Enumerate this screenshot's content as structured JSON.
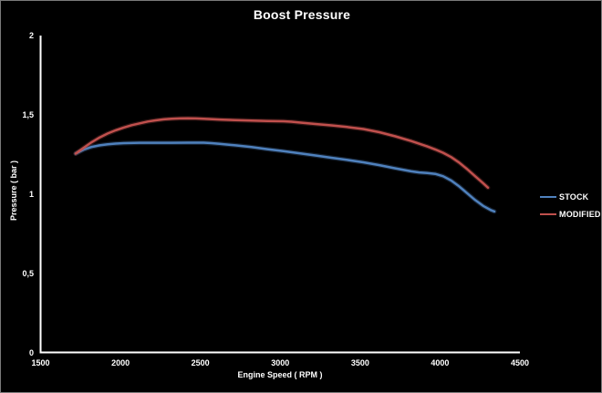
{
  "chart_data": {
    "type": "line",
    "title": "Boost Pressure",
    "xlabel": "Engine Speed ( RPM )",
    "ylabel": "Pressure ( bar )",
    "xlim": [
      1500,
      4500
    ],
    "ylim": [
      0,
      2
    ],
    "grid": false,
    "legend_position": "right-middle",
    "background_color": "#000000",
    "text_color": "#ffffff",
    "axis_color": "#ffffff",
    "border_color": "#7a7a7a",
    "x_ticks": [
      {
        "v": 1500,
        "label": "1500"
      },
      {
        "v": 2000,
        "label": "2000"
      },
      {
        "v": 2500,
        "label": "2500"
      },
      {
        "v": 3000,
        "label": "3000"
      },
      {
        "v": 3500,
        "label": "3500"
      },
      {
        "v": 4000,
        "label": "4000"
      },
      {
        "v": 4500,
        "label": "4500"
      }
    ],
    "y_ticks": [
      {
        "v": 0,
        "label": "0"
      },
      {
        "v": 0.5,
        "label": "0,5"
      },
      {
        "v": 1,
        "label": "1"
      },
      {
        "v": 1.5,
        "label": "1,5"
      },
      {
        "v": 2,
        "label": "2"
      }
    ],
    "series": [
      {
        "name": "STOCK",
        "color": "#4f81bd",
        "points": [
          [
            1720,
            1.255
          ],
          [
            1770,
            1.28
          ],
          [
            1820,
            1.297
          ],
          [
            1870,
            1.307
          ],
          [
            1920,
            1.314
          ],
          [
            1970,
            1.318
          ],
          [
            2020,
            1.321
          ],
          [
            2120,
            1.323
          ],
          [
            2220,
            1.323
          ],
          [
            2320,
            1.323
          ],
          [
            2420,
            1.324
          ],
          [
            2520,
            1.324
          ],
          [
            2570,
            1.321
          ],
          [
            2620,
            1.317
          ],
          [
            2720,
            1.307
          ],
          [
            2820,
            1.296
          ],
          [
            2920,
            1.283
          ],
          [
            3020,
            1.27
          ],
          [
            3120,
            1.257
          ],
          [
            3220,
            1.243
          ],
          [
            3320,
            1.229
          ],
          [
            3420,
            1.215
          ],
          [
            3520,
            1.2
          ],
          [
            3620,
            1.182
          ],
          [
            3720,
            1.162
          ],
          [
            3820,
            1.143
          ],
          [
            3870,
            1.136
          ],
          [
            3920,
            1.132
          ],
          [
            3970,
            1.127
          ],
          [
            4020,
            1.112
          ],
          [
            4070,
            1.085
          ],
          [
            4120,
            1.048
          ],
          [
            4170,
            1.005
          ],
          [
            4220,
            0.962
          ],
          [
            4270,
            0.925
          ],
          [
            4320,
            0.897
          ],
          [
            4340,
            0.89
          ]
        ]
      },
      {
        "name": "MODIFIED",
        "color": "#c0504d",
        "points": [
          [
            1720,
            1.255
          ],
          [
            1770,
            1.292
          ],
          [
            1820,
            1.327
          ],
          [
            1870,
            1.357
          ],
          [
            1920,
            1.382
          ],
          [
            1970,
            1.402
          ],
          [
            2020,
            1.419
          ],
          [
            2070,
            1.434
          ],
          [
            2120,
            1.446
          ],
          [
            2170,
            1.457
          ],
          [
            2220,
            1.465
          ],
          [
            2270,
            1.471
          ],
          [
            2320,
            1.475
          ],
          [
            2370,
            1.477
          ],
          [
            2420,
            1.478
          ],
          [
            2470,
            1.477
          ],
          [
            2520,
            1.475
          ],
          [
            2620,
            1.47
          ],
          [
            2720,
            1.466
          ],
          [
            2820,
            1.463
          ],
          [
            2920,
            1.461
          ],
          [
            3020,
            1.459
          ],
          [
            3070,
            1.456
          ],
          [
            3120,
            1.451
          ],
          [
            3220,
            1.442
          ],
          [
            3320,
            1.433
          ],
          [
            3420,
            1.423
          ],
          [
            3520,
            1.41
          ],
          [
            3620,
            1.39
          ],
          [
            3720,
            1.364
          ],
          [
            3820,
            1.334
          ],
          [
            3920,
            1.3
          ],
          [
            3970,
            1.281
          ],
          [
            4020,
            1.26
          ],
          [
            4070,
            1.233
          ],
          [
            4120,
            1.198
          ],
          [
            4170,
            1.157
          ],
          [
            4220,
            1.112
          ],
          [
            4270,
            1.068
          ],
          [
            4300,
            1.04
          ]
        ]
      }
    ]
  }
}
